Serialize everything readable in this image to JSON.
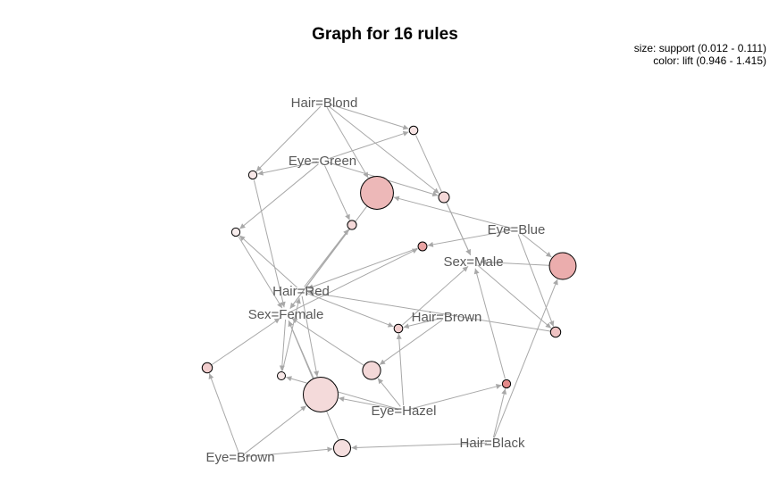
{
  "title": "Graph for 16 rules",
  "legend": {
    "size_text": "size: support (0.012 - 0.111)",
    "color_text": "color: lift (0.946 - 1.415)"
  },
  "measures": {
    "support_range": [
      0.012,
      0.111
    ],
    "lift_range": [
      0.946,
      1.415
    ]
  },
  "colors": {
    "edge": "#a8a8a8",
    "label": "#595959",
    "lift_low": "#f8eeee",
    "lift_high": "#e48a8a"
  },
  "items": [
    {
      "id": "hair_blond",
      "label": "Hair=Blond"
    },
    {
      "id": "eye_green",
      "label": "Eye=Green"
    },
    {
      "id": "eye_blue",
      "label": "Eye=Blue"
    },
    {
      "id": "sex_male",
      "label": "Sex=Male"
    },
    {
      "id": "hair_red",
      "label": "Hair=Red"
    },
    {
      "id": "sex_female",
      "label": "Sex=Female"
    },
    {
      "id": "hair_brown",
      "label": "Hair=Brown"
    },
    {
      "id": "eye_hazel",
      "label": "Eye=Hazel"
    },
    {
      "id": "hair_black",
      "label": "Hair=Black"
    },
    {
      "id": "eye_brown",
      "label": "Eye=Brown"
    }
  ],
  "rules": [
    {
      "id": "r1",
      "support": 0.014,
      "lift": 1.0,
      "lhs": [
        "hair_blond",
        "eye_green"
      ],
      "rhs": "sex_male"
    },
    {
      "id": "r2",
      "support": 0.013,
      "lift": 0.98,
      "lhs": [
        "hair_blond",
        "eye_green"
      ],
      "rhs": "sex_female"
    },
    {
      "id": "r3",
      "support": 0.104,
      "lift": 1.2,
      "lhs": [
        "hair_blond",
        "eye_blue"
      ],
      "rhs": "sex_female"
    },
    {
      "id": "r4",
      "support": 0.022,
      "lift": 1.05,
      "lhs": [
        "hair_blond",
        "eye_green"
      ],
      "rhs": "sex_male"
    },
    {
      "id": "r5",
      "support": 0.013,
      "lift": 0.95,
      "lhs": [
        "hair_red",
        "eye_green"
      ],
      "rhs": "sex_female"
    },
    {
      "id": "r6",
      "support": 0.016,
      "lift": 1.05,
      "lhs": [
        "hair_red",
        "eye_green"
      ],
      "rhs": "sex_female"
    },
    {
      "id": "r7",
      "support": 0.015,
      "lift": 1.3,
      "lhs": [
        "eye_blue",
        "sex_female"
      ],
      "rhs": "hair_red"
    },
    {
      "id": "r8",
      "support": 0.081,
      "lift": 1.25,
      "lhs": [
        "eye_blue",
        "hair_black"
      ],
      "rhs": "sex_male"
    },
    {
      "id": "r9",
      "support": 0.014,
      "lift": 1.1,
      "lhs": [
        "hair_red",
        "hair_brown",
        "eye_hazel"
      ],
      "rhs": "sex_male"
    },
    {
      "id": "r10",
      "support": 0.02,
      "lift": 1.15,
      "lhs": [
        "eye_blue",
        "sex_male"
      ],
      "rhs": "hair_red"
    },
    {
      "id": "r11",
      "support": 0.02,
      "lift": 1.1,
      "lhs": [
        "eye_brown"
      ],
      "rhs": "sex_female"
    },
    {
      "id": "r12",
      "support": 0.012,
      "lift": 0.98,
      "lhs": [
        "eye_hazel",
        "sex_female"
      ],
      "rhs": "hair_red"
    },
    {
      "id": "r13",
      "support": 0.049,
      "lift": 1.05,
      "lhs": [
        "eye_hazel",
        "hair_brown"
      ],
      "rhs": "sex_female"
    },
    {
      "id": "r14",
      "support": 0.111,
      "lift": 1.04,
      "lhs": [
        "eye_brown",
        "hair_red",
        "eye_hazel"
      ],
      "rhs": "sex_female"
    },
    {
      "id": "r15",
      "support": 0.013,
      "lift": 1.415,
      "lhs": [
        "hair_black",
        "eye_hazel"
      ],
      "rhs": "sex_male"
    },
    {
      "id": "r16",
      "support": 0.045,
      "lift": 1.02,
      "lhs": [
        "hair_black",
        "eye_brown"
      ],
      "rhs": "sex_female"
    }
  ]
}
